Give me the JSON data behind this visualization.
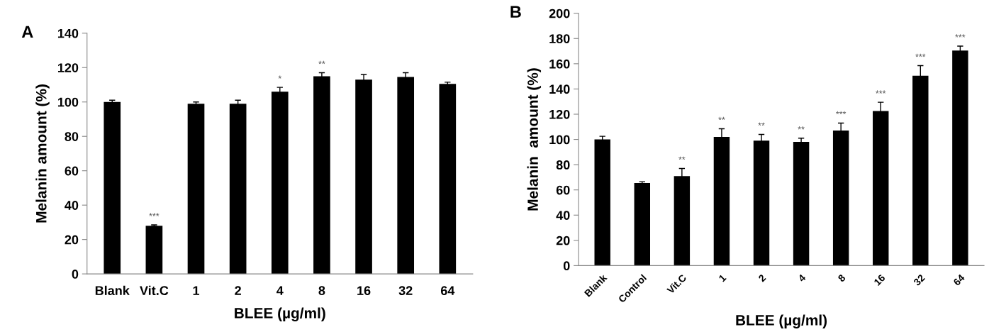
{
  "chart_data": [
    {
      "type": "bar",
      "xlabel": "BLEE (µg/ml)",
      "ylabel": "Melanin amount (%)",
      "categories": [
        "Blank",
        "Vit.C",
        "1",
        "2",
        "4",
        "8",
        "16",
        "32",
        "64"
      ],
      "values": [
        100,
        28,
        99,
        99,
        106,
        115,
        113,
        114.5,
        110.5
      ],
      "color": "#000000",
      "errors": [
        1,
        0.5,
        1,
        2,
        2.5,
        2,
        3,
        2.5,
        1
      ],
      "ylim": [
        0,
        140
      ],
      "yticks": [
        0,
        20,
        40,
        60,
        80,
        100,
        120,
        140
      ],
      "grid": false,
      "annotations": [
        "A",
        {
          "text": "***",
          "x": "Vit.C",
          "y": 28
        },
        {
          "text": "*",
          "x": "4",
          "y": 106
        },
        {
          "text": "**",
          "x": "8",
          "y": 115
        }
      ]
    },
    {
      "type": "bar",
      "xlabel": "BLEE (µg/ml)",
      "ylabel": "Melanin  amount (%)",
      "categories": [
        "Blank",
        "Control",
        "Vit.C",
        "1",
        "2",
        "4",
        "8",
        "16",
        "32",
        "64"
      ],
      "values": [
        100,
        65.5,
        71,
        102,
        99,
        98,
        107,
        122.5,
        150.5,
        170.5
      ],
      "color": "#000000",
      "errors": [
        2.5,
        1,
        6,
        6.5,
        5,
        3,
        6,
        7,
        8,
        3.5
      ],
      "ylim": [
        0,
        200
      ],
      "yticks": [
        0,
        20,
        40,
        60,
        80,
        100,
        120,
        140,
        160,
        180,
        200
      ],
      "grid": false,
      "annotations": [
        "B",
        {
          "text": "**",
          "x": "Vit.C",
          "y": 71
        },
        {
          "text": "**",
          "x": "1",
          "y": 102
        },
        {
          "text": "**",
          "x": "2",
          "y": 99
        },
        {
          "text": "**",
          "x": "4",
          "y": 98
        },
        {
          "text": "***",
          "x": "8",
          "y": 107
        },
        {
          "text": "***",
          "x": "16",
          "y": 122.5
        },
        {
          "text": "***",
          "x": "32",
          "y": 150.5
        },
        {
          "text": "***",
          "x": "64",
          "y": 170.5
        }
      ]
    }
  ]
}
